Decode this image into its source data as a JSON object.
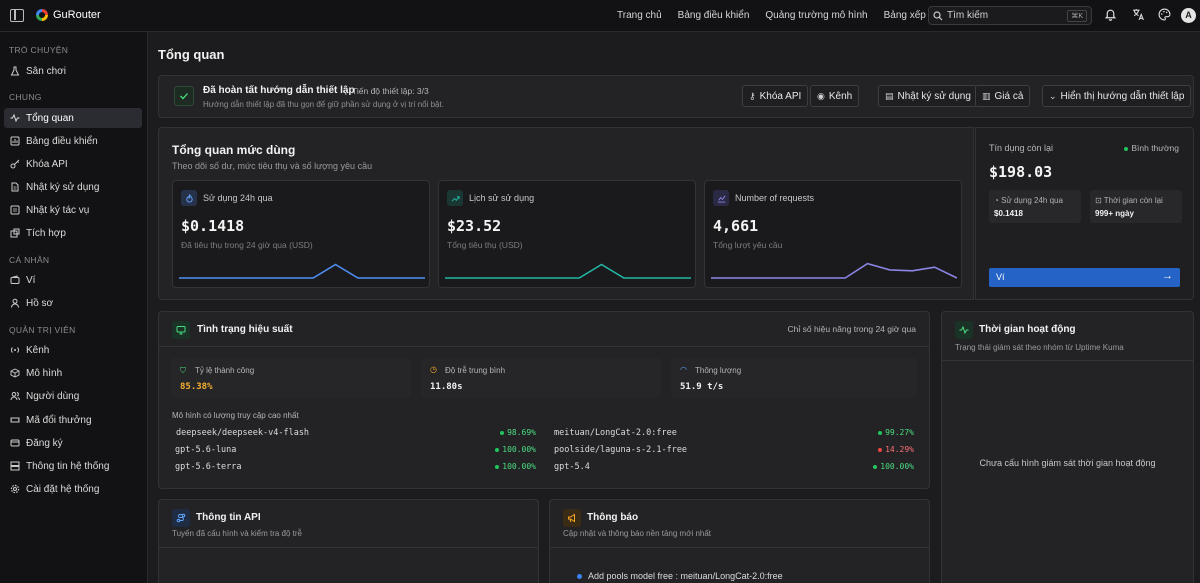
{
  "app": {
    "name": "GuRouter",
    "avatar_letter": "A"
  },
  "topnav": [
    "Trang chủ",
    "Bảng điều khiển",
    "Quảng trường mô hình",
    "Bảng xếp hạng"
  ],
  "search": {
    "placeholder": "Tìm kiếm",
    "shortcut": "⌘K"
  },
  "sidebar": {
    "groups": [
      {
        "label": "TRÒ CHUYỆN",
        "items": [
          "Sân chơi"
        ]
      },
      {
        "label": "CHUNG",
        "items": [
          "Tổng quan",
          "Bảng điều khiển",
          "Khóa API",
          "Nhật ký sử dụng",
          "Nhật ký tác vụ",
          "Tích hợp"
        ]
      },
      {
        "label": "CÁ NHÂN",
        "items": [
          "Ví",
          "Hồ sơ"
        ]
      },
      {
        "label": "QUẢN TRỊ VIÊN",
        "items": [
          "Kênh",
          "Mô hình",
          "Người dùng",
          "Mã đổi thưởng",
          "Đăng ký",
          "Thông tin hệ thống",
          "Cài đặt hệ thống"
        ]
      }
    ],
    "active": "Tổng quan"
  },
  "page_title": "Tổng quan",
  "setup": {
    "title": "Đã hoàn tất hướng dẫn thiết lập",
    "progress": "Tiến độ thiết lập: 3/3",
    "desc": "Hướng dẫn thiết lập đã thu gọn để giữ phần sử dụng ở vị trí nổi bật.",
    "buttons": [
      "Khóa API",
      "Kênh",
      "Nhật ký sử dụng",
      "Giá cả",
      "Hiển thị hướng dẫn thiết lập"
    ]
  },
  "usage": {
    "title": "Tổng quan mức dùng",
    "subtitle": "Theo dõi số dư, mức tiêu thụ và số lượng yêu cầu",
    "stats": [
      {
        "label": "Sử dụng 24h qua",
        "value": "$0.1418",
        "sub": "Đã tiêu thụ trong 24 giờ qua (USD)",
        "color": "#4f8ff7",
        "spark": [
          0,
          0,
          0,
          0,
          0,
          0,
          0,
          0.75,
          0,
          0,
          0,
          0
        ]
      },
      {
        "label": "Lịch sử sử dụng",
        "value": "$23.52",
        "sub": "Tổng tiêu thụ (USD)",
        "color": "#22b8a4",
        "spark": [
          0,
          0,
          0,
          0,
          0,
          0,
          0,
          0.75,
          0,
          0,
          0,
          0
        ]
      },
      {
        "label": "Number of requests",
        "value": "4,661",
        "sub": "Tổng lượt yêu cầu",
        "color": "#8b86e6",
        "spark": [
          0,
          0,
          0,
          0,
          0,
          0,
          0,
          0.8,
          0.45,
          0.4,
          0.6,
          0
        ]
      }
    ]
  },
  "credit": {
    "label": "Tín dụng còn lại",
    "status": "Bình thường",
    "value": "$198.03",
    "used_label": "Sử dụng 24h qua",
    "used_value": "$0.1418",
    "time_label": "Thời gian còn lại",
    "time_value": "999+ ngày",
    "wallet_button": "Ví",
    "status_color": "#22c55e",
    "button_color": "#2563c7"
  },
  "performance": {
    "title": "Tình trạng hiệu suất",
    "subtitle": "Chỉ số hiệu năng trong 24 giờ qua",
    "metrics": [
      {
        "label": "Tỷ lệ thành công",
        "value": "85.38%",
        "color": "#f5b030"
      },
      {
        "label": "Độ trễ trung bình",
        "value": "11.80s",
        "color": "#f0f0f0"
      },
      {
        "label": "Thông lượng",
        "value": "51.9 t/s",
        "color": "#f0f0f0"
      }
    ],
    "models_heading": "Mô hình có lượng truy cập cao nhất",
    "models_left": [
      {
        "name": "deepseek/deepseek-v4-flash",
        "rate": "98.69%",
        "color": "#22c55e"
      },
      {
        "name": "gpt-5.6-luna",
        "rate": "100.00%",
        "color": "#22c55e"
      },
      {
        "name": "gpt-5.6-terra",
        "rate": "100.00%",
        "color": "#22c55e"
      }
    ],
    "models_right": [
      {
        "name": "meituan/LongCat-2.0:free",
        "rate": "99.27%",
        "color": "#22c55e"
      },
      {
        "name": "poolside/laguna-s-2.1-free",
        "rate": "14.29%",
        "color": "#ef4444"
      },
      {
        "name": "gpt-5.4",
        "rate": "100.00%",
        "color": "#22c55e"
      }
    ]
  },
  "uptime": {
    "title": "Thời gian hoạt động",
    "subtitle": "Trạng thái giám sát theo nhóm từ Uptime Kuma",
    "empty": "Chưa cấu hình giám sát thời gian hoạt động"
  },
  "api_info": {
    "title": "Thông tin API",
    "subtitle": "Tuyến đã cấu hình và kiểm tra độ trễ"
  },
  "notices": {
    "title": "Thông báo",
    "subtitle": "Cập nhật và thông báo nền tảng mới nhất",
    "items": [
      "Add pools model free : meituan/LongCat-2.0:free"
    ]
  }
}
